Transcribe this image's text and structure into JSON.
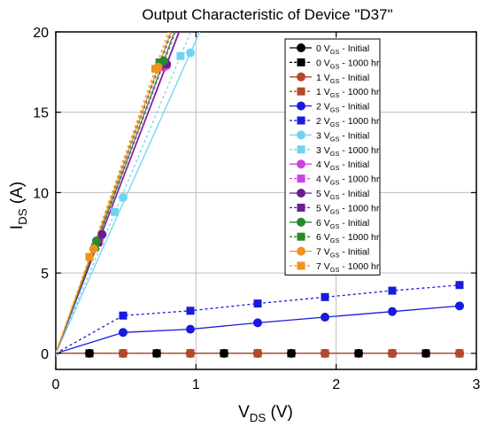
{
  "chart_data": {
    "type": "line",
    "title": "Output Characteristic of Device \"D37\"",
    "xlabel": {
      "main": "V",
      "sub": "DS",
      "unit": " (V)"
    },
    "ylabel": {
      "main": "I",
      "sub": "DS",
      "unit": " (A)"
    },
    "xlim": [
      0,
      3
    ],
    "ylim": [
      -1,
      20
    ],
    "x_ticks": [
      "0",
      "1",
      "2",
      "3"
    ],
    "y_ticks": [
      "0",
      "5",
      "10",
      "15",
      "20"
    ],
    "grid": true,
    "legend_position": "top-right",
    "colors": {
      "0": "#000000",
      "1": "#b5472a",
      "2": "#1a1adb",
      "3": "#6fd3f2",
      "4": "#cc44dd",
      "5": "#6a1d8c",
      "6": "#2a8a2a",
      "7": "#f0921e"
    },
    "series": [
      {
        "name": "0 V_GS - Initial",
        "vgs": "0",
        "kind": "initial",
        "x": [
          0,
          0.24,
          0.48,
          0.72,
          0.96,
          1.2,
          1.44,
          1.68,
          1.92,
          2.16,
          2.4,
          2.64,
          2.88
        ],
        "y": [
          0,
          0,
          0,
          0,
          0,
          0,
          0,
          0,
          0,
          0,
          0,
          0,
          0
        ]
      },
      {
        "name": "0 V_GS - 1000 hr",
        "vgs": "0",
        "kind": "aged",
        "x": [
          0,
          0.24,
          0.48,
          0.72,
          0.96,
          1.2,
          1.44,
          1.68,
          1.92,
          2.16,
          2.4,
          2.64,
          2.88
        ],
        "y": [
          0,
          0,
          0,
          0,
          0,
          0,
          0,
          0,
          0,
          0,
          0,
          0,
          0
        ]
      },
      {
        "name": "1 V_GS - Initial",
        "vgs": "1",
        "kind": "initial",
        "x": [
          0,
          0.48,
          0.96,
          1.44,
          1.92,
          2.4,
          2.88
        ],
        "y": [
          0,
          0,
          0,
          0,
          0,
          0,
          0
        ]
      },
      {
        "name": "1 V_GS - 1000 hr",
        "vgs": "1",
        "kind": "aged",
        "x": [
          0,
          0.48,
          0.96,
          1.44,
          1.92,
          2.4,
          2.88
        ],
        "y": [
          0,
          0,
          0,
          0,
          0,
          0,
          0
        ]
      },
      {
        "name": "2 V_GS - Initial",
        "vgs": "2",
        "kind": "initial",
        "x": [
          0,
          0.48,
          0.96,
          1.44,
          1.92,
          2.4,
          2.88
        ],
        "y": [
          0,
          1.3,
          1.5,
          1.9,
          2.25,
          2.6,
          2.95
        ]
      },
      {
        "name": "2 V_GS - 1000 hr",
        "vgs": "2",
        "kind": "aged",
        "x": [
          0,
          0.48,
          0.96,
          1.44,
          1.92,
          2.4,
          2.88
        ],
        "y": [
          0,
          2.35,
          2.65,
          3.1,
          3.5,
          3.9,
          4.25
        ]
      },
      {
        "name": "3 V_GS - Initial",
        "vgs": "3",
        "kind": "initial",
        "x": [
          0,
          0.48,
          0.96
        ],
        "y": [
          0,
          9.7,
          18.7
        ]
      },
      {
        "name": "3 V_GS - 1000 hr",
        "vgs": "3",
        "kind": "aged",
        "x": [
          0,
          0.42,
          0.89
        ],
        "y": [
          0,
          8.8,
          18.5
        ]
      },
      {
        "name": "4 V_GS - Initial",
        "vgs": "4",
        "kind": "initial",
        "x": [
          0,
          0.33,
          0.79
        ],
        "y": [
          0,
          7.4,
          17.9
        ]
      },
      {
        "name": "4 V_GS - 1000 hr",
        "vgs": "4",
        "kind": "aged",
        "x": [
          0,
          0.31,
          0.76
        ],
        "y": [
          0,
          7.0,
          17.8
        ]
      },
      {
        "name": "5 V_GS - Initial",
        "vgs": "5",
        "kind": "initial",
        "x": [
          0,
          0.33,
          0.79
        ],
        "y": [
          0,
          7.4,
          18.0
        ]
      },
      {
        "name": "5 V_GS - 1000 hr",
        "vgs": "5",
        "kind": "aged",
        "x": [
          0,
          0.3,
          0.74
        ],
        "y": [
          0,
          6.9,
          17.9
        ]
      },
      {
        "name": "6 V_GS - Initial",
        "vgs": "6",
        "kind": "initial",
        "x": [
          0,
          0.29,
          0.77
        ],
        "y": [
          0,
          7.0,
          18.2
        ]
      },
      {
        "name": "6 V_GS - 1000 hr",
        "vgs": "6",
        "kind": "aged",
        "x": [
          0,
          0.28,
          0.74
        ],
        "y": [
          0,
          6.6,
          18.1
        ]
      },
      {
        "name": "7 V_GS - Initial",
        "vgs": "7",
        "kind": "initial",
        "x": [
          0,
          0.27,
          0.73
        ],
        "y": [
          0,
          6.5,
          17.8
        ]
      },
      {
        "name": "7 V_GS - 1000 hr",
        "vgs": "7",
        "kind": "aged",
        "x": [
          0,
          0.24,
          0.71
        ],
        "y": [
          0,
          6.0,
          17.7
        ]
      }
    ]
  }
}
